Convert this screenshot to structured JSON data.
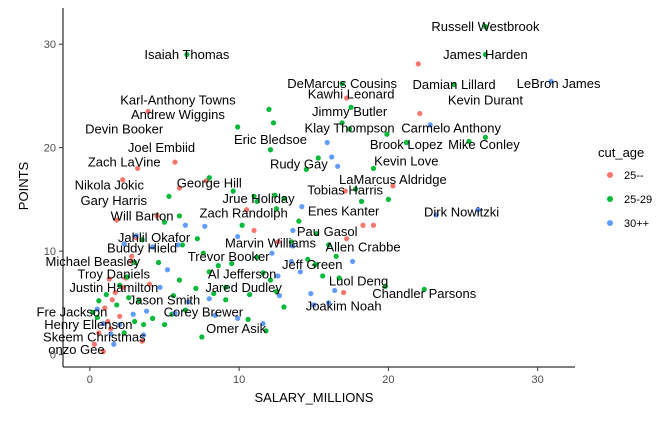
{
  "chart_data": {
    "type": "scatter",
    "xlabel": "SALARY_MILLIONS",
    "ylabel": "POINTS",
    "xlim": [
      -1.8,
      32.5
    ],
    "ylim": [
      -1.2,
      33.5
    ],
    "x_ticks": [
      0,
      10,
      20,
      30
    ],
    "y_ticks": [
      0,
      10,
      20,
      30
    ],
    "grid": false,
    "legend": {
      "title": "cut_age",
      "placement": "right",
      "entries": [
        {
          "label": "25--",
          "color": "#F8766D"
        },
        {
          "label": "25-29",
          "color": "#00BA38"
        },
        {
          "label": "30++",
          "color": "#619CFF"
        }
      ]
    },
    "series": [
      {
        "name": "25--",
        "color": "#F8766D",
        "points": [
          [
            0.3,
            1.0
          ],
          [
            0.9,
            0.3
          ],
          [
            1.0,
            4.5
          ],
          [
            1.2,
            3.2
          ],
          [
            1.4,
            2.5
          ],
          [
            1.5,
            5.3
          ],
          [
            1.7,
            6.0
          ],
          [
            2.0,
            3.7
          ],
          [
            2.2,
            6.5
          ],
          [
            2.4,
            7.4
          ],
          [
            2.8,
            9.5
          ],
          [
            3.1,
            11.3
          ],
          [
            1.8,
            13.0
          ],
          [
            2.2,
            16.9
          ],
          [
            3.2,
            18.0
          ],
          [
            3.9,
            23.5
          ],
          [
            5.7,
            18.6
          ],
          [
            6.0,
            16.1
          ],
          [
            7.8,
            16.8
          ],
          [
            10.5,
            14.0
          ],
          [
            12.6,
            10.9
          ],
          [
            17.1,
            15.8
          ],
          [
            17.2,
            11.2
          ],
          [
            18.3,
            12.5
          ],
          [
            19.0,
            12.5
          ],
          [
            17.2,
            24.8
          ],
          [
            20.3,
            16.3
          ],
          [
            22.1,
            23.3
          ],
          [
            22.0,
            28.1
          ],
          [
            17.0,
            6.0
          ],
          [
            11.0,
            12.0
          ],
          [
            4.5,
            13.4
          ],
          [
            2.8,
            9.0
          ],
          [
            1.3,
            7.3
          ],
          [
            0.6,
            2.1
          ],
          [
            4.0,
            6.8
          ],
          [
            3.5,
            1.3
          ]
        ]
      },
      {
        "name": "25-29",
        "color": "#00BA38",
        "points": [
          [
            6.5,
            29.0
          ],
          [
            26.5,
            31.7
          ],
          [
            26.5,
            29.0
          ],
          [
            16.9,
            26.2
          ],
          [
            24.4,
            26.1
          ],
          [
            16.9,
            22.4
          ],
          [
            17.5,
            23.9
          ],
          [
            19.0,
            18.0
          ],
          [
            17.4,
            21.8
          ],
          [
            26.5,
            21.0
          ],
          [
            21.2,
            20.5
          ],
          [
            25.4,
            20.6
          ],
          [
            12.0,
            23.7
          ],
          [
            9.9,
            22.0
          ],
          [
            12.1,
            19.8
          ],
          [
            12.3,
            22.4
          ],
          [
            14.5,
            17.9
          ],
          [
            15.3,
            19.0
          ],
          [
            19.9,
            21.3
          ],
          [
            17.8,
            16.0
          ],
          [
            20.0,
            15.0
          ],
          [
            11.0,
            15.3
          ],
          [
            12.4,
            15.4
          ],
          [
            12.5,
            14.1
          ],
          [
            13.0,
            15.1
          ],
          [
            11.2,
            14.8
          ],
          [
            8.0,
            17.1
          ],
          [
            9.6,
            15.8
          ],
          [
            6.0,
            13.4
          ],
          [
            5.0,
            12.8
          ],
          [
            3.5,
            11.1
          ],
          [
            3.0,
            8.9
          ],
          [
            2.5,
            7.5
          ],
          [
            2.6,
            5.5
          ],
          [
            3.0,
            3.2
          ],
          [
            2.0,
            6.7
          ],
          [
            1.8,
            4.8
          ],
          [
            6.2,
            10.6
          ],
          [
            7.2,
            11.2
          ],
          [
            7.6,
            9.8
          ],
          [
            8.0,
            8.0
          ],
          [
            8.6,
            8.6
          ],
          [
            9.5,
            8.8
          ],
          [
            9.1,
            6.5
          ],
          [
            9.1,
            5.3
          ],
          [
            6.4,
            4.3
          ],
          [
            5.5,
            3.9
          ],
          [
            5.0,
            2.9
          ],
          [
            4.2,
            3.5
          ],
          [
            7.5,
            1.7
          ],
          [
            10.6,
            3.4
          ],
          [
            10.7,
            5.8
          ],
          [
            13.0,
            4.6
          ],
          [
            11.8,
            2.3
          ],
          [
            15.6,
            7.6
          ],
          [
            14.6,
            9.2
          ],
          [
            13.5,
            10.9
          ],
          [
            16.0,
            10.6
          ],
          [
            16.5,
            9.5
          ],
          [
            15.2,
            11.7
          ],
          [
            10.2,
            12.5
          ],
          [
            15.1,
            8.7
          ],
          [
            22.4,
            6.3
          ],
          [
            19.8,
            6.6
          ],
          [
            11.6,
            7.9
          ],
          [
            11.2,
            9.4
          ],
          [
            12.1,
            7.2
          ],
          [
            0.2,
            4.1
          ],
          [
            0.6,
            5.2
          ],
          [
            1.1,
            5.8
          ],
          [
            14.0,
            12.9
          ],
          [
            4.6,
            8.9
          ],
          [
            3.3,
            5.2
          ],
          [
            6.0,
            7.2
          ],
          [
            7.1,
            6.4
          ],
          [
            8.3,
            5.9
          ],
          [
            12.5,
            6.1
          ],
          [
            16.7,
            7.4
          ],
          [
            18.2,
            14.8
          ],
          [
            5.3,
            15.3
          ],
          [
            0.5,
            3.6
          ],
          [
            2.3,
            2.1
          ],
          [
            3.6,
            2.9
          ],
          [
            5.6,
            5.7
          ]
        ]
      },
      {
        "name": "30++",
        "color": "#619CFF",
        "points": [
          [
            30.9,
            26.4
          ],
          [
            23.2,
            13.5
          ],
          [
            26.0,
            14.0
          ],
          [
            22.8,
            22.2
          ],
          [
            15.9,
            20.5
          ],
          [
            16.2,
            19.1
          ],
          [
            16.6,
            18.2
          ],
          [
            14.2,
            14.3
          ],
          [
            13.6,
            12.0
          ],
          [
            13.5,
            9.0
          ],
          [
            14.1,
            8.0
          ],
          [
            12.6,
            7.6
          ],
          [
            16.4,
            6.2
          ],
          [
            14.8,
            5.9
          ],
          [
            15.0,
            4.8
          ],
          [
            16.0,
            5.0
          ],
          [
            11.6,
            3.0
          ],
          [
            9.9,
            3.5
          ],
          [
            8.4,
            3.8
          ],
          [
            8.0,
            5.4
          ],
          [
            5.7,
            4.0
          ],
          [
            4.7,
            6.5
          ],
          [
            5.9,
            10.6
          ],
          [
            4.2,
            10.4
          ],
          [
            6.4,
            12.5
          ],
          [
            12.7,
            5.7
          ],
          [
            3.6,
            1.9
          ],
          [
            3.8,
            4.2
          ],
          [
            2.9,
            3.9
          ],
          [
            2.0,
            2.9
          ],
          [
            1.4,
            2.0
          ],
          [
            0.9,
            3.0
          ],
          [
            0.5,
            4.4
          ],
          [
            13.6,
            10.5
          ],
          [
            12.2,
            9.8
          ],
          [
            7.7,
            12.4
          ],
          [
            2.3,
            10.7
          ],
          [
            3.1,
            11.5
          ],
          [
            17.6,
            9.0
          ],
          [
            5.2,
            8.2
          ],
          [
            1.6,
            1.0
          ],
          [
            9.9,
            11.4
          ],
          [
            6.6,
            5.1
          ]
        ]
      }
    ],
    "labels": [
      {
        "text": "Russell Westbrook",
        "x": 26.5,
        "y": 31.7
      },
      {
        "text": "Isaiah Thomas",
        "x": 6.5,
        "y": 29.0
      },
      {
        "text": "James Harden",
        "x": 26.5,
        "y": 29.0
      },
      {
        "text": "DeMarcus Cousins",
        "x": 16.9,
        "y": 26.2
      },
      {
        "text": "Damian Lillard",
        "x": 24.4,
        "y": 26.1
      },
      {
        "text": "LeBron James",
        "x": 31.4,
        "y": 26.2
      },
      {
        "text": "Karl-Anthony Towns",
        "x": 5.9,
        "y": 24.6
      },
      {
        "text": "Kawhi Leonard",
        "x": 17.5,
        "y": 25.2
      },
      {
        "text": "Kevin Durant",
        "x": 26.5,
        "y": 24.6
      },
      {
        "text": "Jimmy Butler",
        "x": 17.4,
        "y": 23.5
      },
      {
        "text": "Andrew Wiggins",
        "x": 5.9,
        "y": 23.2
      },
      {
        "text": "Devin Booker",
        "x": 2.3,
        "y": 21.8
      },
      {
        "text": "Klay Thompson",
        "x": 17.4,
        "y": 21.9
      },
      {
        "text": "Carmelo Anthony",
        "x": 24.2,
        "y": 21.9
      },
      {
        "text": "Eric Bledsoe",
        "x": 12.1,
        "y": 20.8
      },
      {
        "text": "Joel Embiid",
        "x": 4.8,
        "y": 20.0
      },
      {
        "text": "Brook Lopez",
        "x": 21.2,
        "y": 20.3
      },
      {
        "text": "Mike Conley",
        "x": 26.4,
        "y": 20.3
      },
      {
        "text": "Zach LaVine",
        "x": 2.3,
        "y": 18.6
      },
      {
        "text": "Rudy Gay",
        "x": 14.0,
        "y": 18.4
      },
      {
        "text": "Kevin Love",
        "x": 21.2,
        "y": 18.7
      },
      {
        "text": "LaMarcus Aldridge",
        "x": 20.3,
        "y": 16.9
      },
      {
        "text": "Nikola Jokic",
        "x": 1.3,
        "y": 16.4
      },
      {
        "text": "George Hill",
        "x": 8.0,
        "y": 16.6
      },
      {
        "text": "Tobias Harris",
        "x": 17.1,
        "y": 15.9
      },
      {
        "text": "Jrue Holiday",
        "x": 11.3,
        "y": 15.1
      },
      {
        "text": "Gary Harris",
        "x": 1.6,
        "y": 14.9
      },
      {
        "text": "Zach Randolph",
        "x": 10.3,
        "y": 13.7
      },
      {
        "text": "Enes Kanter",
        "x": 17.0,
        "y": 13.9
      },
      {
        "text": "Dirk Nowitzki",
        "x": 24.9,
        "y": 13.8
      },
      {
        "text": "Will Barton",
        "x": 3.5,
        "y": 13.4
      },
      {
        "text": "Pau Gasol",
        "x": 15.9,
        "y": 11.9
      },
      {
        "text": "Jahlil Okafor",
        "x": 4.3,
        "y": 11.3
      },
      {
        "text": "Marvin Williams",
        "x": 12.1,
        "y": 10.8
      },
      {
        "text": "Allen Crabbe",
        "x": 18.3,
        "y": 10.4
      },
      {
        "text": "Buddy Hield",
        "x": 3.5,
        "y": 10.3
      },
      {
        "text": "Trevor Booker",
        "x": 9.3,
        "y": 9.5
      },
      {
        "text": "Michael Beasley",
        "x": 0.2,
        "y": 9.0
      },
      {
        "text": "Jeff Green",
        "x": 14.9,
        "y": 8.7
      },
      {
        "text": "Troy Daniels",
        "x": 1.6,
        "y": 7.8
      },
      {
        "text": "Al Jefferson",
        "x": 10.2,
        "y": 7.8
      },
      {
        "text": "Luol Deng",
        "x": 18.0,
        "y": 7.1
      },
      {
        "text": "Justin Hamilton",
        "x": 1.6,
        "y": 6.5
      },
      {
        "text": "Jared Dudley",
        "x": 10.3,
        "y": 6.5
      },
      {
        "text": "Chandler Parsons",
        "x": 22.4,
        "y": 5.9
      },
      {
        "text": "Jason Smith",
        "x": 5.0,
        "y": 5.3
      },
      {
        "text": "Joakim Noah",
        "x": 17.0,
        "y": 4.7
      },
      {
        "text": "Corey Brewer",
        "x": 7.6,
        "y": 4.1
      },
      {
        "text": "Fre Jackson",
        "x": -1.2,
        "y": 4.1
      },
      {
        "text": "Henry Ellenson",
        "x": -0.1,
        "y": 2.9
      },
      {
        "text": "Omer Asik",
        "x": 9.8,
        "y": 2.5
      },
      {
        "text": "Skeem Christmas",
        "x": 0.3,
        "y": 1.7
      },
      {
        "text": "onzo Gee",
        "x": -0.9,
        "y": 0.5
      }
    ]
  }
}
